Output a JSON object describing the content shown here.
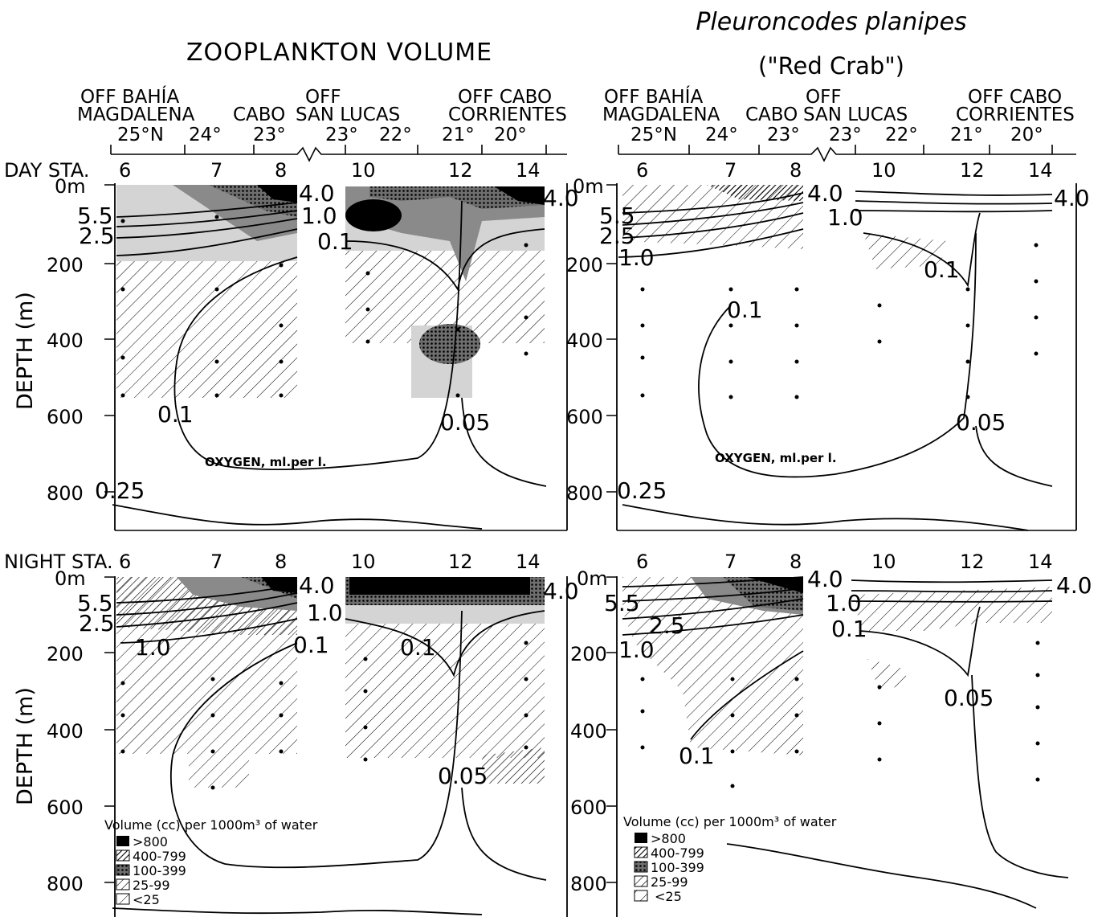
{
  "titles": {
    "left": "ZOOPLANKTON VOLUME",
    "right_species": "Pleuroncodes planipes",
    "right_common": "(\"Red Crab\")"
  },
  "locations": {
    "bahia_1": "OFF BAHÍA",
    "bahia_2": "MAGDALENA",
    "cabo": "CABO",
    "off": "OFF",
    "san_lucas": "SAN LUCAS",
    "corrientes_1": "OFF CABO",
    "corrientes_2": "CORRIENTES"
  },
  "latitudes": [
    "25°N",
    "24°",
    "23°",
    "23°",
    "22°",
    "21°",
    "20°"
  ],
  "station_labels": {
    "day": "DAY STA.",
    "night": "NIGHT STA.",
    "stations": [
      "6",
      "7",
      "8",
      "10",
      "12",
      "14"
    ]
  },
  "depth_axis": {
    "label": "DEPTH (m)",
    "surface": "0m",
    "ticks": [
      "200",
      "400",
      "600",
      "800"
    ]
  },
  "isopleths": {
    "o40": "4.0",
    "o55": "5.5",
    "o25": "2.5",
    "o10": "1.0",
    "o01": "0.1",
    "o005": "0.05",
    "o025": "0.25"
  },
  "oxygen_label": "OXYGEN, ml.per l.",
  "legend": {
    "title": "Volume (cc) per 1000m³ of water",
    "items": [
      ">800",
      "400-799",
      "100-399",
      "25-99",
      "<25"
    ]
  },
  "colors": {
    "ink": "#000000",
    "paper": "#ffffff",
    "shade_light": "#d4d4d4",
    "shade_mid": "#8a8a8a",
    "shade_dark": "#2a2a2a"
  }
}
